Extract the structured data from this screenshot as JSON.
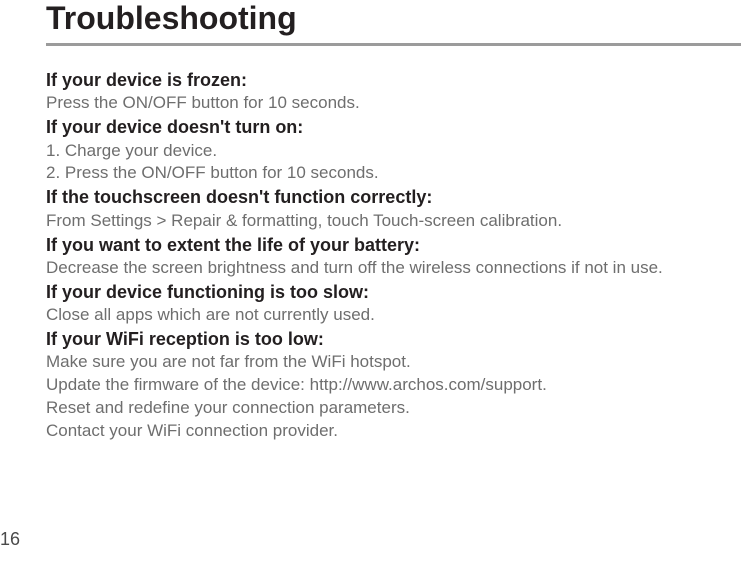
{
  "page": {
    "title": "Troubleshooting",
    "page_number": "16"
  },
  "sections": [
    {
      "heading": "If your device is frozen:",
      "lines": [
        "Press the ON/OFF button for 10 seconds."
      ]
    },
    {
      "heading": "If your device doesn't turn on:",
      "lines": [
        "1. Charge your device.",
        "2. Press the ON/OFF button for 10 seconds."
      ]
    },
    {
      "heading": "If the touchscreen doesn't function correctly:",
      "lines": [
        "From Settings > Repair & formatting, touch Touch-screen calibration."
      ]
    },
    {
      "heading": "If you want to extent the life of your battery:",
      "lines": [
        "Decrease the screen brightness and turn off the wireless connections if not in use."
      ]
    },
    {
      "heading": "If your device functioning is too slow:",
      "lines": [
        "Close all apps which are not currently used."
      ]
    },
    {
      "heading": "If your WiFi reception is too low:",
      "lines": [
        "Make sure you are not far from the WiFi hotspot.",
        "Update the firmware of the device: http://www.archos.com/support.",
        "Reset and redefine your connection parameters.",
        "Contact your WiFi connection provider."
      ]
    }
  ],
  "style": {
    "title_color": "#231f20",
    "title_fontsize": 32,
    "heading_color": "#231f20",
    "heading_fontsize": 18,
    "body_color": "#6e6e6e",
    "body_fontsize": 17,
    "divider_color": "#9b9b9b",
    "background_color": "#ffffff"
  }
}
